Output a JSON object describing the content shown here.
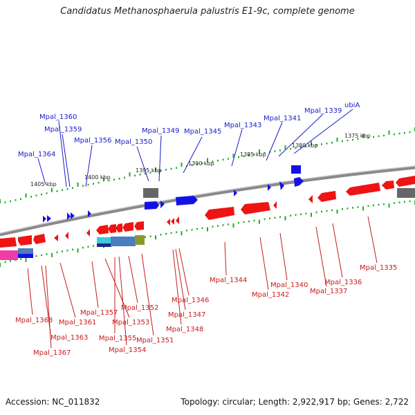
{
  "title": "Candidatus Methanosphaerula palustris E1-9c, complete genome",
  "footer": {
    "accession": "Accession: NC_011832",
    "summary": "Topology: circular; Length: 2,922,917 bp; Genes: 2,722"
  },
  "colors": {
    "forward": "#1010e0",
    "reverse": "#ee1010",
    "backbone": "#888888",
    "ruler": "#22aa22",
    "label_forward": "#1a1ac8",
    "label_reverse": "#c81a1a"
  },
  "ticks": [
    "1405 kbp",
    "1400 kbp",
    "1395 kbp",
    "1390 kbp",
    "1385 kbp",
    "1380 kbp",
    "1375 kbp"
  ],
  "forward_labels": [
    "Mpal_1360",
    "Mpal_1359",
    "Mpal_1364",
    "Mpal_1356",
    "Mpal_1350",
    "Mpal_1349",
    "Mpal_1345",
    "Mpal_1343",
    "Mpal_1341",
    "Mpal_1339",
    "ubiA"
  ],
  "reverse_labels": [
    "Mpal_1368",
    "Mpal_1361",
    "Mpal_1363",
    "Mpal_1367",
    "Mpal_1357",
    "Mpal_1353",
    "Mpal_1355",
    "Mpal_1354",
    "Mpal_1352",
    "Mpal_1351",
    "Mpal_1346",
    "Mpal_1347",
    "Mpal_1348",
    "Mpal_1344",
    "Mpal_1342",
    "Mpal_1340",
    "Mpal_1337",
    "Mpal_1336",
    "Mpal_1335"
  ]
}
